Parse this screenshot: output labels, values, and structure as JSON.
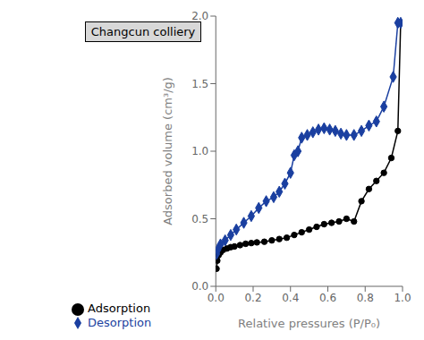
{
  "chart_data": {
    "type": "line",
    "title": "Changcun colliery",
    "xlabel": "Relative pressures (P/P₀)",
    "ylabel": "Adsorbed volume (cm³/g)",
    "xlim": [
      0.0,
      1.0
    ],
    "ylim": [
      0.0,
      2.0
    ],
    "xticks": [
      {
        "value": 0.0,
        "label": "0.0"
      },
      0.2,
      0.4,
      0.6,
      0.8,
      {
        "value": 1.0,
        "label": "1.0"
      }
    ],
    "yticks": [
      {
        "value": 0.0,
        "label": "0.0"
      },
      0.5,
      {
        "value": 1.0,
        "label": "1.0"
      },
      1.5,
      {
        "value": 2.0,
        "label": "2.0"
      }
    ],
    "grid": false,
    "legend": "bottom left",
    "series": [
      {
        "name": "Adsorption",
        "color": "#000000",
        "marker": "circle",
        "line_style": "solid",
        "x": [
          0.004,
          0.008,
          0.015,
          0.025,
          0.04,
          0.06,
          0.08,
          0.1,
          0.13,
          0.16,
          0.19,
          0.22,
          0.26,
          0.3,
          0.34,
          0.38,
          0.42,
          0.46,
          0.5,
          0.54,
          0.58,
          0.62,
          0.66,
          0.7,
          0.74,
          0.78,
          0.82,
          0.86,
          0.9,
          0.94,
          0.975,
          0.99
        ],
        "values": [
          0.13,
          0.19,
          0.23,
          0.25,
          0.27,
          0.28,
          0.29,
          0.295,
          0.305,
          0.315,
          0.32,
          0.325,
          0.33,
          0.34,
          0.35,
          0.36,
          0.38,
          0.4,
          0.42,
          0.44,
          0.46,
          0.47,
          0.48,
          0.5,
          0.48,
          0.63,
          0.72,
          0.78,
          0.84,
          0.95,
          1.15,
          1.95
        ]
      },
      {
        "name": "Desorption",
        "color": "#1a3fa0",
        "marker": "diamond",
        "line_style": "solid",
        "x": [
          0.99,
          0.975,
          0.95,
          0.9,
          0.86,
          0.82,
          0.78,
          0.74,
          0.7,
          0.67,
          0.64,
          0.61,
          0.58,
          0.55,
          0.52,
          0.49,
          0.46,
          0.44,
          0.42,
          0.4,
          0.37,
          0.34,
          0.31,
          0.27,
          0.23,
          0.19,
          0.15,
          0.11,
          0.08,
          0.05,
          0.025,
          0.01,
          0.004
        ],
        "values": [
          1.95,
          1.95,
          1.55,
          1.33,
          1.22,
          1.19,
          1.15,
          1.12,
          1.12,
          1.13,
          1.15,
          1.16,
          1.17,
          1.16,
          1.14,
          1.12,
          1.1,
          1.0,
          0.97,
          0.84,
          0.76,
          0.7,
          0.66,
          0.63,
          0.58,
          0.52,
          0.47,
          0.42,
          0.38,
          0.34,
          0.31,
          0.27,
          0.24
        ]
      }
    ]
  }
}
